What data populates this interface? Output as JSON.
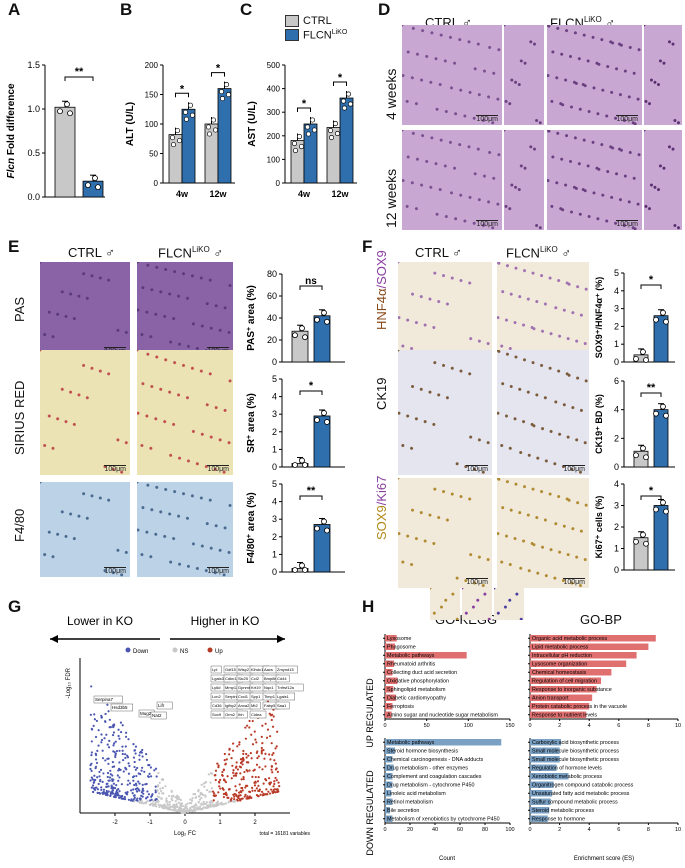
{
  "panels": {
    "A": "A",
    "B": "B",
    "C": "C",
    "D": "D",
    "E": "E",
    "F": "F",
    "G": "G",
    "H": "H"
  },
  "colors": {
    "ctrl": "#c8c8c8",
    "ko": "#2f6fad",
    "down": "#4a56b0",
    "up": "#b83a26",
    "ns": "#c8c8c8",
    "kegg_up": "#e07070",
    "kegg_down": "#7aa0c4",
    "he": "#c9a7d3",
    "pas": "#8a63a6",
    "sirius": "#ece3b4",
    "f480": "#bcd2e6",
    "ck19": "#e4e5ef",
    "hnf4": "#f1eadb"
  },
  "legend": {
    "ctrl": "CTRL",
    "ko": "FLCN",
    "ko_sup": "LiKO"
  },
  "charts": {
    "A": {
      "ylabel_italic": "Flcn",
      "ylabel_rest": " Fold difference",
      "yticks": [
        "0.0",
        "0.5",
        "1.0",
        "1.5"
      ],
      "sig": "**"
    },
    "B": {
      "ylabel": "ALT (U/L)",
      "yticks": [
        "0",
        "50",
        "100",
        "150",
        "200"
      ],
      "categories": [
        "4w",
        "12w"
      ],
      "sig": [
        "*",
        "*"
      ]
    },
    "C": {
      "ylabel": "AST (U/L)",
      "yticks": [
        "0",
        "100",
        "200",
        "300",
        "400",
        "500"
      ],
      "categories": [
        "4w",
        "12w"
      ],
      "sig": [
        "*",
        "*"
      ]
    },
    "E1": {
      "ylabel_pre": "PAS",
      "ylabel_sup": "+",
      "ylabel_post": " area (%)",
      "yticks": [
        "0",
        "20",
        "40",
        "60",
        "80"
      ],
      "sig": "ns"
    },
    "E2": {
      "ylabel_pre": "SR",
      "ylabel_sup": "+",
      "ylabel_post": " area (%)",
      "yticks": [
        "0",
        "1",
        "2",
        "3",
        "4",
        "5"
      ],
      "sig": "*"
    },
    "E3": {
      "ylabel_pre": "F4/80",
      "ylabel_sup": "+",
      "ylabel_post": " area (%)",
      "yticks": [
        "0",
        "1",
        "2",
        "3",
        "4",
        "5"
      ],
      "sig": "**"
    },
    "F1": {
      "ylabel": "SOX9⁺/HNF4α⁺ (%)",
      "yticks": [
        "0",
        "1",
        "2",
        "3",
        "4",
        "5"
      ],
      "sig": "*"
    },
    "F2": {
      "ylabel": "CK19⁺ BD (%)",
      "yticks": [
        "0",
        "2",
        "4",
        "6"
      ],
      "sig": "**"
    },
    "F3": {
      "ylabel": "Ki67⁺ cells (%)",
      "yticks": [
        "0",
        "1",
        "2",
        "3",
        "4"
      ],
      "sig": "*"
    }
  },
  "chart_data": [
    {
      "type": "bar",
      "panel": "A",
      "categories": [
        "CTRL",
        "FLCN LiKO"
      ],
      "values": [
        1.02,
        0.18
      ],
      "ylim": [
        0,
        1.5
      ],
      "ylabel": "Flcn Fold difference"
    },
    {
      "type": "bar",
      "panel": "B",
      "categories": [
        "4w",
        "12w"
      ],
      "series": [
        {
          "name": "CTRL",
          "values": [
            82,
            100
          ]
        },
        {
          "name": "FLCN LiKO",
          "values": [
            125,
            160
          ]
        }
      ],
      "ylim": [
        0,
        200
      ],
      "ylabel": "ALT (U/L)"
    },
    {
      "type": "bar",
      "panel": "C",
      "categories": [
        "4w",
        "12w"
      ],
      "series": [
        {
          "name": "CTRL",
          "values": [
            180,
            235
          ]
        },
        {
          "name": "FLCN LiKO",
          "values": [
            250,
            360
          ]
        }
      ],
      "ylim": [
        0,
        500
      ],
      "ylabel": "AST (U/L)"
    },
    {
      "type": "bar",
      "panel": "E1",
      "categories": [
        "CTRL",
        "FLCN LiKO"
      ],
      "values": [
        28,
        42
      ],
      "ylim": [
        0,
        80
      ],
      "ylabel": "PAS+ area (%)"
    },
    {
      "type": "bar",
      "panel": "E2",
      "categories": [
        "CTRL",
        "FLCN LiKO"
      ],
      "values": [
        0.2,
        2.9
      ],
      "ylim": [
        0,
        5
      ],
      "ylabel": "SR+ area (%)"
    },
    {
      "type": "bar",
      "panel": "E3",
      "categories": [
        "CTRL",
        "FLCN LiKO"
      ],
      "values": [
        0.2,
        2.7
      ],
      "ylim": [
        0,
        5
      ],
      "ylabel": "F4/80+ area (%)"
    },
    {
      "type": "bar",
      "panel": "F1",
      "categories": [
        "CTRL",
        "FLCN LiKO"
      ],
      "values": [
        0.4,
        2.6
      ],
      "ylim": [
        0,
        5
      ],
      "ylabel": "SOX9+/HNF4α+ (%)"
    },
    {
      "type": "bar",
      "panel": "F2",
      "categories": [
        "CTRL",
        "FLCN LiKO"
      ],
      "values": [
        1.1,
        4.0
      ],
      "ylim": [
        0,
        6
      ],
      "ylabel": "CK19+ BD (%)"
    },
    {
      "type": "bar",
      "panel": "F3",
      "categories": [
        "CTRL",
        "FLCN LiKO"
      ],
      "values": [
        1.5,
        3.0
      ],
      "ylim": [
        0,
        4
      ],
      "ylabel": "Ki67+ cells (%)"
    },
    {
      "type": "scatter",
      "panel": "G",
      "xlabel": "Log₂ FC",
      "ylabel": "-Log₁₀ FDR",
      "legend": [
        "Down",
        "NS",
        "Up"
      ],
      "xticks": [
        "-2",
        "-1",
        "0",
        "1",
        "2"
      ],
      "footer": "total = 16181 variables",
      "labels_down": [
        "Serpina7",
        "Hsd3b5",
        "Mug2",
        "Lifr",
        "Nat2"
      ],
      "labels_up": [
        "Lpl",
        "Gdf15",
        "Wisp2",
        "Klhdc1",
        "Aacs",
        "Zmynd15",
        "Lgals3",
        "Cdkn1a",
        "Slc25",
        "Ccl2",
        "Bmp8b",
        "Cd44",
        "Ly6d",
        "Mmp12",
        "Gpnmb",
        "Krt19",
        "Nqo1",
        "Tnfrsf12a",
        "Lcn2",
        "Serpinb1a",
        "Cxcl1",
        "Spp1",
        "Timp1",
        "Lgals1",
        "Cd36",
        "Igfbp2",
        "Anxa2",
        "Mt2",
        "Fabp5",
        "Saa1",
        "Sox9",
        "Orm2",
        "Ihh",
        "Cidea"
      ]
    },
    {
      "type": "bar",
      "panel": "H-KEGG-up",
      "orientation": "horizontal",
      "categories": [
        "Lysosome",
        "Phagosome",
        "Metabolic pathways",
        "Rheumatoid arthritis",
        "Collecting duct acid secretion",
        "Oxidative phosphorylation",
        "Sphingolipid metabolism",
        "Diabetic cardiomyopathy",
        "Ferroptosis",
        "Amino sugar and nucleotide sugar metabolism"
      ],
      "values": [
        14,
        12,
        98,
        11,
        9,
        15,
        10,
        13,
        9,
        8
      ],
      "xlim": [
        0,
        150
      ],
      "xlabel": "Count"
    },
    {
      "type": "bar",
      "panel": "H-BP-up",
      "orientation": "horizontal",
      "categories": [
        "Organic acid metabolic process",
        "Lipid metabolic process",
        "Intracellular pH reduction",
        "Lysosome organization",
        "Chemical homeostasis",
        "Regulation of cell migration",
        "Response to inorganic substance",
        "Anion transport",
        "Protein catabolic process in the vacuole",
        "Response to nutrient levels"
      ],
      "values": [
        8.5,
        8.0,
        7.2,
        6.5,
        5.5,
        4.8,
        4.5,
        4.2,
        4.0,
        3.8
      ],
      "xlim": [
        0,
        10
      ],
      "xlabel": "Enrichment score (ES)"
    },
    {
      "type": "bar",
      "panel": "H-KEGG-down",
      "orientation": "horizontal",
      "categories": [
        "Metabolic pathways",
        "Steroid hormone biosynthesis",
        "Chemical carcinogenesis - DNA adducts",
        "Drug metabolism - other enzymes",
        "Complement and coagulation cascades",
        "Drug metabolism - cytochrome P450",
        "Linoleic acid metabolism",
        "Retinol metabolism",
        "Bile secretion",
        "Metabolism of xenobiotics by cytochrome P450"
      ],
      "values": [
        93,
        8,
        6,
        7,
        6,
        6,
        5,
        6,
        4,
        6
      ],
      "xlim": [
        0,
        100
      ],
      "xlabel": "Count"
    },
    {
      "type": "bar",
      "panel": "H-BP-down",
      "orientation": "horizontal",
      "categories": [
        "Carboxylic acid biosynthetic process",
        "Small molecule biosynthetic process",
        "Small molecule biosynthetic process",
        "Regulation of hormone levels",
        "Xenobiotic metabolic process",
        "Organitrogen compound catabolic process",
        "Unsaturated fatty acid metabolic process",
        "Sulfur compound metabolic process",
        "Steroid metabolic process",
        "Response to hormone"
      ],
      "values": [
        2.1,
        2.0,
        2.0,
        1.8,
        2.6,
        1.6,
        1.5,
        1.4,
        1.3,
        1.2
      ],
      "xlim": [
        0,
        10
      ],
      "xlabel": "Enrichment score (ES)"
    }
  ],
  "D": {
    "ctrl": "CTRL ♂",
    "ko": "FLCN",
    "ko_sup": "LiKO",
    "ko_sym": " ♂",
    "row1": "4 weeks",
    "row2": "12 weeks",
    "scale": "100μm"
  },
  "E": {
    "ctrl": "CTRL ♂",
    "ko": "FLCN",
    "ko_sup": "LiKO",
    "ko_sym": " ♂",
    "row1": "PAS",
    "row2": "SIRIUS RED",
    "row3": "F4/80",
    "scale": "100μm"
  },
  "F": {
    "ctrl": "CTRL ♂",
    "ko": "FLCN",
    "ko_sup": "LiKO",
    "ko_sym": " ♂",
    "row1a": "HNF4α",
    "row1b": "/SOX9",
    "row2": "CK19",
    "row3a": "SOX9",
    "row3b": "/Ki67",
    "scale": "100μm"
  },
  "G": {
    "lower": "Lower in KO",
    "higher": "Higher in KO"
  },
  "H": {
    "kegg": "GO-KEGG",
    "bp": "GO-BP",
    "up": "UP REGULATED",
    "down": "DOWN REGULATED",
    "kegg_up_ticks": [
      "0",
      "50",
      "100",
      "150"
    ],
    "kegg_down_ticks": [
      "0",
      "20",
      "40",
      "60",
      "80",
      "100"
    ],
    "bp_ticks": [
      "0",
      "2",
      "4",
      "6",
      "8",
      "10"
    ],
    "xlabel_count": "Count",
    "xlabel_es": "Enrichment score (ES)"
  }
}
